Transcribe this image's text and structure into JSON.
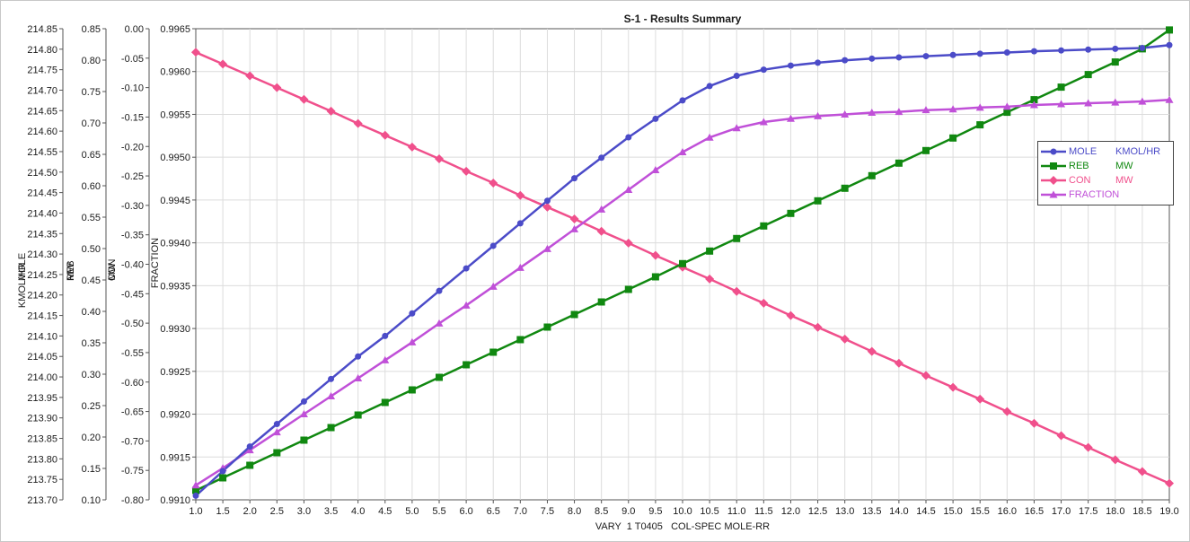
{
  "chart_data": {
    "type": "line",
    "title": "S-1 - Results Summary",
    "xlabel": "VARY  1 T0405   COL-SPEC MOLE-RR",
    "xlim": [
      1.0,
      19.0
    ],
    "x_ticks": [
      "1.0",
      "1.5",
      "2.0",
      "2.5",
      "3.0",
      "3.5",
      "4.0",
      "4.5",
      "5.0",
      "5.5",
      "6.0",
      "6.5",
      "7.0",
      "7.5",
      "8.0",
      "8.5",
      "9.0",
      "9.5",
      "10.0",
      "10.5",
      "11.0",
      "11.5",
      "12.0",
      "12.5",
      "13.0",
      "13.5",
      "14.0",
      "14.5",
      "15.0",
      "15.5",
      "16.0",
      "16.5",
      "17.0",
      "17.5",
      "18.0",
      "18.5",
      "19.0"
    ],
    "x": [
      1.0,
      1.5,
      2.0,
      2.5,
      3.0,
      3.5,
      4.0,
      4.5,
      5.0,
      5.5,
      6.0,
      6.5,
      7.0,
      7.5,
      8.0,
      8.5,
      9.0,
      9.5,
      10.0,
      10.5,
      11.0,
      11.5,
      12.0,
      12.5,
      13.0,
      13.5,
      14.0,
      14.5,
      15.0,
      15.5,
      16.0,
      16.5,
      17.0,
      17.5,
      18.0,
      18.5,
      19.0
    ],
    "grid": true,
    "legend_position": "right",
    "axes": [
      {
        "id": "mole",
        "label_top": "KMOL/HR",
        "label_bottom": "MOLE",
        "range": [
          213.7,
          214.85
        ],
        "ticks": [
          "213.70",
          "213.75",
          "213.80",
          "213.85",
          "213.90",
          "213.95",
          "214.00",
          "214.05",
          "214.10",
          "214.15",
          "214.20",
          "214.25",
          "214.30",
          "214.35",
          "214.40",
          "214.45",
          "214.50",
          "214.55",
          "214.60",
          "214.65",
          "214.70",
          "214.75",
          "214.80",
          "214.85"
        ]
      },
      {
        "id": "reb",
        "label_top": "MW",
        "label_bottom": "REB",
        "range": [
          0.1,
          0.85
        ],
        "ticks": [
          "0.10",
          "0.15",
          "0.20",
          "0.25",
          "0.30",
          "0.35",
          "0.40",
          "0.45",
          "0.50",
          "0.55",
          "0.60",
          "0.65",
          "0.70",
          "0.75",
          "0.80",
          "0.85"
        ]
      },
      {
        "id": "con",
        "label_top": "MW",
        "label_bottom": "CON",
        "range": [
          -0.8,
          0.0
        ],
        "ticks": [
          "-0.80",
          "-0.75",
          "-0.70",
          "-0.65",
          "-0.60",
          "-0.55",
          "-0.50",
          "-0.45",
          "-0.40",
          "-0.35",
          "-0.30",
          "-0.25",
          "-0.20",
          "-0.15",
          "-0.10",
          "-0.05",
          "0.00"
        ]
      },
      {
        "id": "frac",
        "label_top": "",
        "label_bottom": "FRACTION",
        "range": [
          0.991,
          0.9965
        ],
        "ticks": [
          "0.9910",
          "0.9915",
          "0.9920",
          "0.9925",
          "0.9930",
          "0.9935",
          "0.9940",
          "0.9945",
          "0.9950",
          "0.9955",
          "0.9960",
          "0.9965"
        ]
      }
    ],
    "series": [
      {
        "name": "MOLE",
        "unit": "KMOL/HR",
        "axis": "mole",
        "color": "#4b4bc8",
        "marker": "circle",
        "values": [
          213.71,
          213.77,
          213.83,
          213.885,
          213.94,
          213.995,
          214.05,
          214.1,
          214.155,
          214.21,
          214.265,
          214.32,
          214.375,
          214.43,
          214.485,
          214.535,
          214.585,
          214.63,
          214.675,
          214.71,
          214.735,
          214.75,
          214.76,
          214.767,
          214.773,
          214.777,
          214.78,
          214.783,
          214.786,
          214.789,
          214.792,
          214.795,
          214.797,
          214.799,
          214.801,
          214.803,
          214.81
        ]
      },
      {
        "name": "REB",
        "unit": "MW",
        "axis": "reb",
        "color": "#108810",
        "marker": "square",
        "values": [
          0.115,
          0.135,
          0.155,
          0.175,
          0.195,
          0.215,
          0.235,
          0.255,
          0.275,
          0.295,
          0.315,
          0.335,
          0.355,
          0.375,
          0.395,
          0.415,
          0.435,
          0.455,
          0.476,
          0.496,
          0.516,
          0.536,
          0.556,
          0.576,
          0.596,
          0.616,
          0.636,
          0.656,
          0.676,
          0.697,
          0.717,
          0.737,
          0.757,
          0.777,
          0.797,
          0.818,
          0.848
        ]
      },
      {
        "name": "CON",
        "unit": "MW",
        "axis": "con",
        "color": "#f0508c",
        "marker": "diamond",
        "values": [
          -0.04,
          -0.06,
          -0.08,
          -0.1,
          -0.12,
          -0.14,
          -0.161,
          -0.181,
          -0.201,
          -0.221,
          -0.242,
          -0.262,
          -0.283,
          -0.303,
          -0.323,
          -0.344,
          -0.364,
          -0.385,
          -0.405,
          -0.425,
          -0.446,
          -0.466,
          -0.487,
          -0.507,
          -0.527,
          -0.548,
          -0.568,
          -0.589,
          -0.609,
          -0.629,
          -0.65,
          -0.67,
          -0.691,
          -0.711,
          -0.732,
          -0.752,
          -0.772
        ]
      },
      {
        "name": "FRACTION",
        "unit": "",
        "axis": "frac",
        "color": "#c050d8",
        "marker": "triangle",
        "values": [
          0.99117,
          0.99137,
          0.99158,
          0.99179,
          0.992,
          0.99221,
          0.99242,
          0.99263,
          0.99284,
          0.99306,
          0.99327,
          0.99349,
          0.99371,
          0.99393,
          0.99416,
          0.99439,
          0.99462,
          0.99485,
          0.99506,
          0.99523,
          0.99534,
          0.99541,
          0.99545,
          0.99548,
          0.9955,
          0.99552,
          0.99553,
          0.99555,
          0.99556,
          0.99558,
          0.99559,
          0.99561,
          0.99562,
          0.99563,
          0.99564,
          0.99565,
          0.99567
        ]
      }
    ]
  }
}
